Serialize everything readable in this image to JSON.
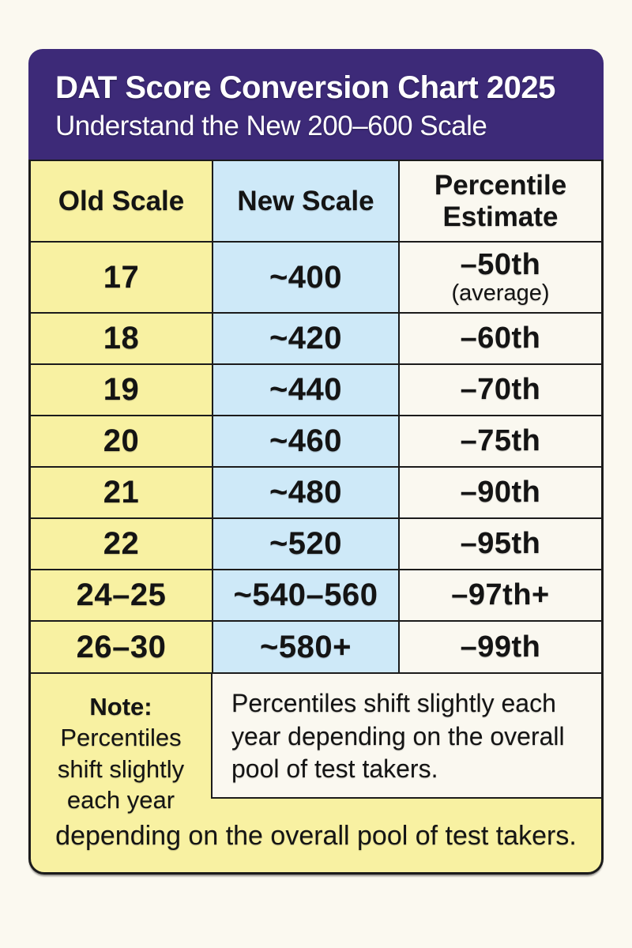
{
  "colors": {
    "header_background": "#3d2a78",
    "header_text": "#ffffff",
    "old_scale_column": "#f8f1a2",
    "new_scale_column": "#cee9f8",
    "percentile_column": "#faf8f0",
    "border": "#1b1b1b",
    "page_background": "#fbf9f0"
  },
  "chart_data": {
    "type": "table",
    "title": "DAT Score Conversion Chart 2025",
    "subtitle": "Understand the New 200–600 Scale",
    "columns": [
      "Old Scale",
      "New Scale",
      "Percentile Estimate"
    ],
    "rows": [
      {
        "old": "17",
        "new": "~400",
        "percentile": "–50th",
        "percentile_note": "(average)"
      },
      {
        "old": "18",
        "new": "~420",
        "percentile": "–60th"
      },
      {
        "old": "19",
        "new": "~440",
        "percentile": "–70th"
      },
      {
        "old": "20",
        "new": "~460",
        "percentile": "–75th"
      },
      {
        "old": "21",
        "new": "~480",
        "percentile": "–90th"
      },
      {
        "old": "22",
        "new": "~520",
        "percentile": "–95th"
      },
      {
        "old": "24–25",
        "new": "~540–560",
        "percentile": "–97th+"
      },
      {
        "old": "26–30",
        "new": "~580+",
        "percentile": "–99th"
      }
    ],
    "note": {
      "label": "Note:",
      "left_text": "Percentiles shift slightly each year",
      "box_text": "Percentiles shift slightly each year depending on the overall pool of test takers.",
      "bottom_text": "depending on the overall pool of test takers."
    }
  }
}
